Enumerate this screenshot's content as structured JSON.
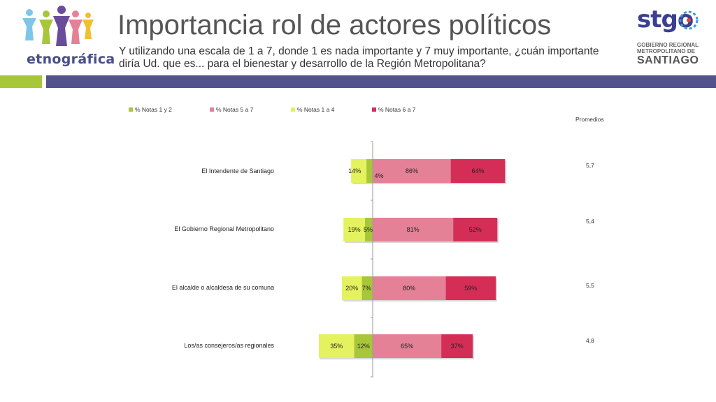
{
  "header": {
    "title": "Importancia rol de actores políticos",
    "subtitle": "Y utilizando una escala de 1 a 7, donde 1 es nada importante y 7 muy importante, ¿cuán importante diría Ud. que es... para el bienestar y desarrollo de la Región Metropolitana?",
    "brand_left": "etnográfica",
    "brand_right": "stgo",
    "brand_right_sub": "GOBIERNO REGIONAL METROPOLITANO DE",
    "brand_right_city": "SANTIAGO"
  },
  "colors": {
    "notas_1_2": "#a8c63a",
    "notas_5_7": "#e58197",
    "notas_1_4": "#e3f25e",
    "notas_6_7": "#d42e57",
    "header_bar": "#54528a",
    "accent_bar": "#a8c63a"
  },
  "chart_data": {
    "type": "bar",
    "orientation": "horizontal-diverging",
    "legend": [
      "% Notas 1 y 2",
      "% Notas 5 a 7",
      "% Notas 1 a 4",
      "% Notas 6 a 7"
    ],
    "legend_position": "top",
    "averages_title": "Promedios",
    "categories": [
      "El Intendente de Santiago",
      "El Gobierno Regional Metropolitano",
      "El alcalde o alcaldesa de su comuna",
      "Los/as consejeros/as regionales"
    ],
    "series": [
      {
        "name": "% Notas 1 y 2",
        "values": [
          4,
          5,
          7,
          12
        ],
        "labels": [
          "4%",
          "5%",
          "7%",
          "12%"
        ]
      },
      {
        "name": "% Notas 5 a 7",
        "values": [
          86,
          81,
          80,
          65
        ],
        "labels": [
          "86%",
          "81%",
          "80%",
          "65%"
        ]
      },
      {
        "name": "% Notas 1 a 4",
        "values": [
          14,
          19,
          20,
          35
        ],
        "labels": [
          "14%",
          "19%",
          "20%",
          "35%"
        ]
      },
      {
        "name": "% Notas 6 a 7",
        "values": [
          64,
          52,
          59,
          37
        ],
        "labels": [
          "64%",
          "52%",
          "59%",
          "37%"
        ]
      }
    ],
    "averages": [
      "5,7",
      "5,4",
      "5,5",
      "4,8"
    ],
    "grid": false
  }
}
